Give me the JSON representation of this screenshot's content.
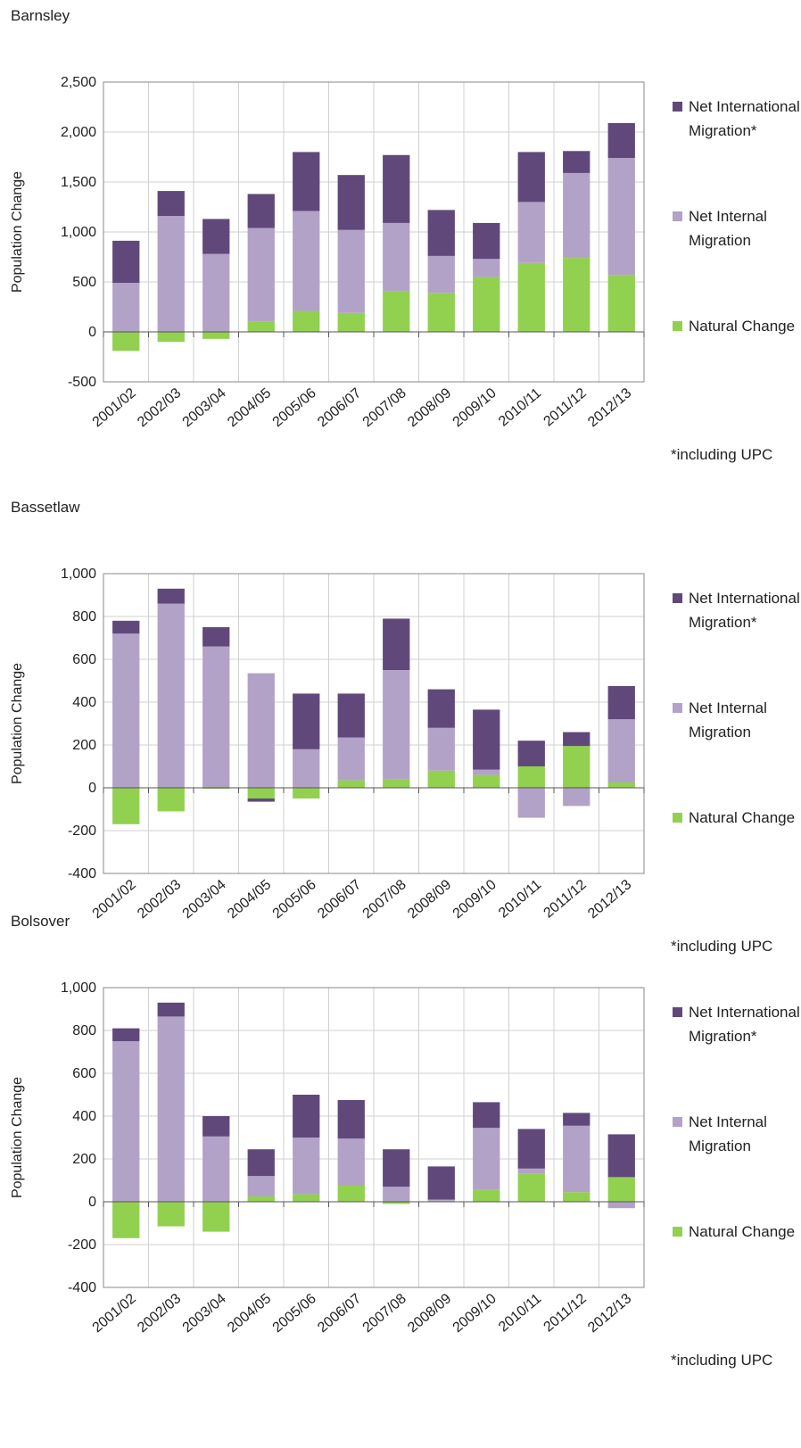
{
  "chart_data": [
    {
      "type": "bar",
      "stacked": true,
      "title": "Barnsley",
      "ylabel": "Population Change",
      "footnote": "*including UPC",
      "grid": true,
      "categories": [
        "2001/02",
        "2002/03",
        "2003/04",
        "2004/05",
        "2005/06",
        "2006/07",
        "2007/08",
        "2008/09",
        "2009/10",
        "2010/11",
        "2011/12",
        "2012/13"
      ],
      "series": [
        {
          "name": "Natural Change",
          "color": "#92d050",
          "values": [
            -190,
            -100,
            -70,
            100,
            210,
            190,
            410,
            390,
            550,
            690,
            740,
            570
          ]
        },
        {
          "name": "Net Internal Migration",
          "color": "#b3a2c7",
          "values": [
            490,
            1160,
            780,
            940,
            1000,
            830,
            680,
            370,
            180,
            610,
            850,
            1170
          ]
        },
        {
          "name": "Net International Migration*",
          "color": "#60497a",
          "values": [
            422,
            250,
            350,
            340,
            590,
            550,
            680,
            460,
            360,
            500,
            220,
            350
          ]
        }
      ],
      "ylim": [
        -500,
        2500
      ],
      "yticks": [
        -500,
        0,
        500,
        {
          "value": 1000,
          "label": "1,000"
        },
        {
          "value": 1500,
          "label": "1,500"
        },
        {
          "value": 2000,
          "label": "2,000"
        },
        {
          "value": 2500,
          "label": "2,500"
        }
      ]
    },
    {
      "type": "bar",
      "stacked": true,
      "title": "Bassetlaw",
      "ylabel": "Population Change",
      "footnote": "*including UPC",
      "grid": true,
      "categories": [
        "2001/02",
        "2002/03",
        "2003/04",
        "2004/05",
        "2005/06",
        "2006/07",
        "2007/08",
        "2008/09",
        "2009/10",
        "2010/11",
        "2011/12",
        "2012/13"
      ],
      "series": [
        {
          "name": "Natural Change",
          "color": "#92d050",
          "values": [
            -170,
            -110,
            -5,
            -50,
            -50,
            35,
            40,
            80,
            60,
            100,
            195,
            25
          ]
        },
        {
          "name": "Net Internal Migration",
          "color": "#b3a2c7",
          "values": [
            720,
            860,
            660,
            535,
            180,
            200,
            510,
            200,
            25,
            -140,
            -85,
            295
          ]
        },
        {
          "name": "Net International Migration*",
          "color": "#60497a",
          "values": [
            60,
            70,
            90,
            -15,
            260,
            205,
            240,
            180,
            280,
            120,
            65,
            155
          ]
        }
      ],
      "ylim": [
        -400,
        1000
      ],
      "yticks": [
        -400,
        -200,
        0,
        200,
        400,
        600,
        800,
        {
          "value": 1000,
          "label": "1,000"
        }
      ]
    },
    {
      "type": "bar",
      "stacked": true,
      "title": "Bolsover",
      "ylabel": "Population Change",
      "footnote": "*including UPC",
      "grid": true,
      "categories": [
        "2001/02",
        "2002/03",
        "2003/04",
        "2004/05",
        "2005/06",
        "2006/07",
        "2007/08",
        "2008/09",
        "2009/10",
        "2010/11",
        "2011/12",
        "2012/13"
      ],
      "series": [
        {
          "name": "Natural Change",
          "color": "#92d050",
          "values": [
            -170,
            -115,
            -140,
            25,
            35,
            75,
            -10,
            5,
            55,
            130,
            45,
            115
          ]
        },
        {
          "name": "Net Internal Migration",
          "color": "#b3a2c7",
          "values": [
            750,
            865,
            305,
            95,
            265,
            220,
            70,
            5,
            290,
            25,
            310,
            -30
          ]
        },
        {
          "name": "Net International Migration*",
          "color": "#60497a",
          "values": [
            60,
            65,
            95,
            125,
            200,
            180,
            175,
            155,
            120,
            185,
            60,
            200
          ]
        }
      ],
      "ylim": [
        -400,
        1000
      ],
      "yticks": [
        -400,
        -200,
        0,
        200,
        400,
        600,
        800,
        {
          "value": 1000,
          "label": "1,000"
        }
      ]
    }
  ]
}
